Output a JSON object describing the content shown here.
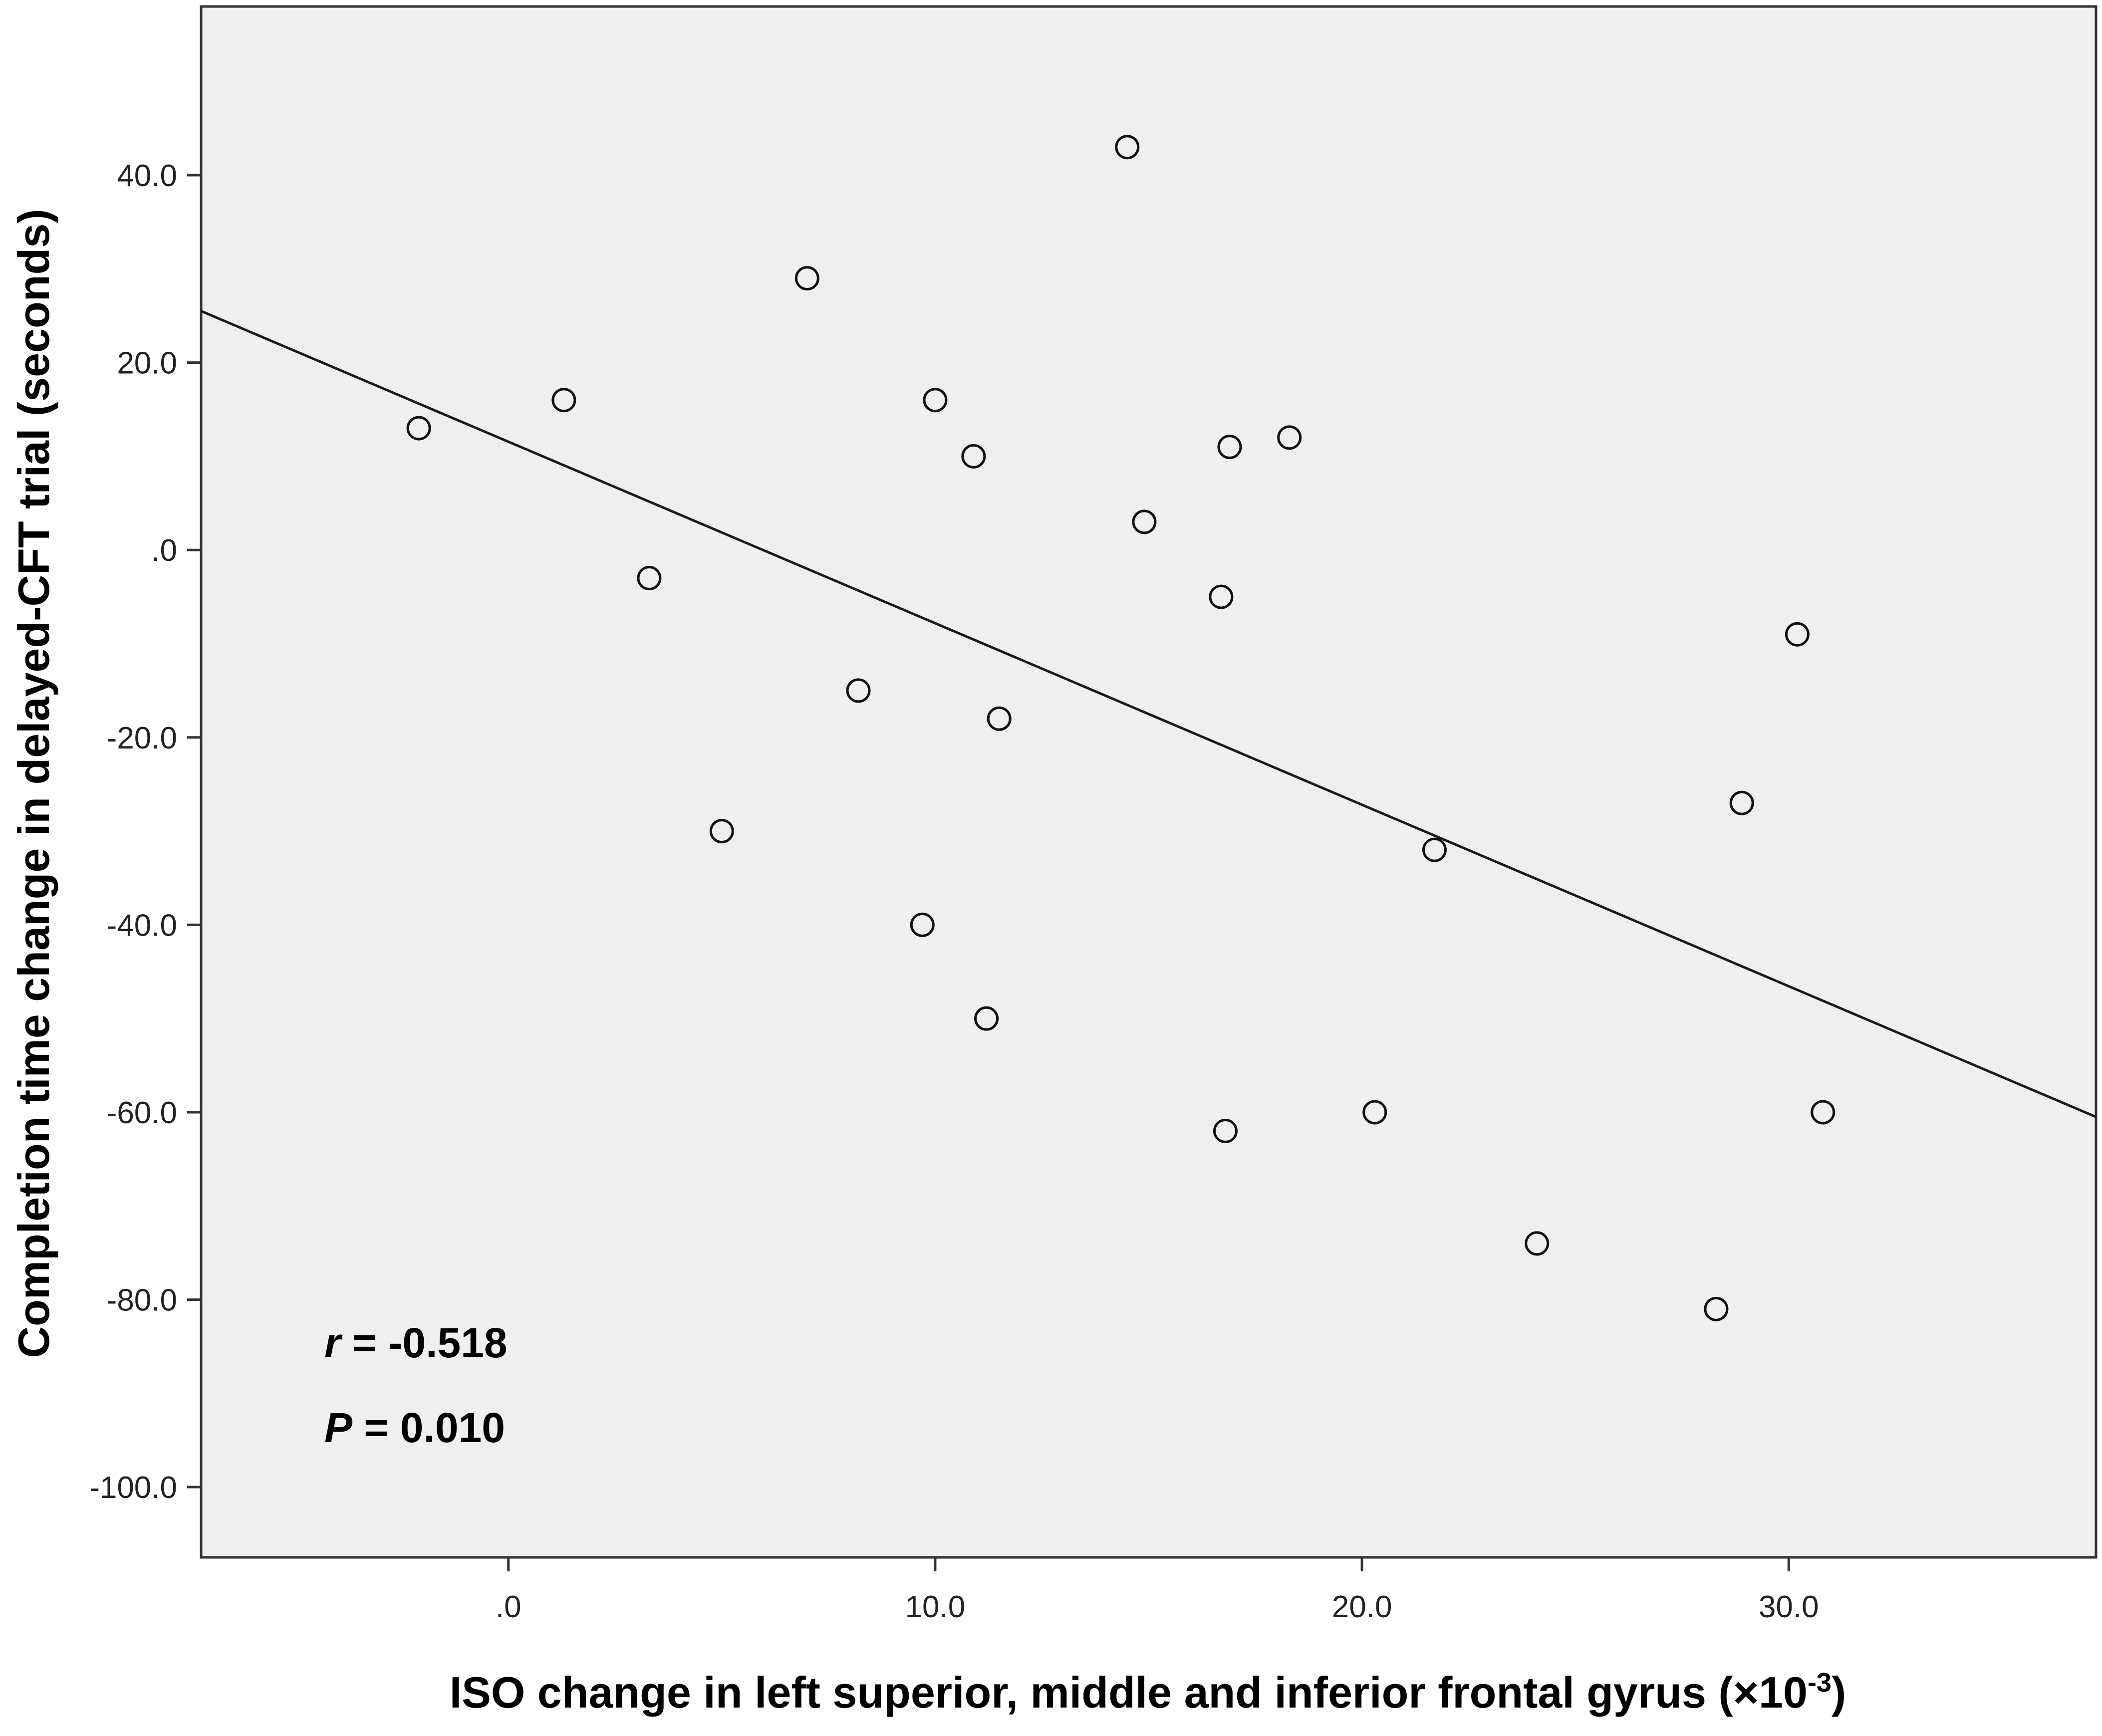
{
  "chart_data": {
    "type": "scatter",
    "xlabel": "ISO change in left superior, middle and inferior frontal gyrus (×10",
    "xlabel_sup": "-3",
    "xlabel_end": ")",
    "ylabel": "Completion time change in delayed-CFT trial (seconds)",
    "xlim": [
      -7.2,
      37.2
    ],
    "ylim": [
      -107.5,
      58
    ],
    "x_ticks": [
      0,
      10,
      20,
      30
    ],
    "x_tick_labels": [
      ".0",
      "10.0",
      "20.0",
      "30.0"
    ],
    "y_ticks": [
      40,
      20,
      0,
      -20,
      -40,
      -60,
      -80,
      -100
    ],
    "y_tick_labels": [
      "40.0",
      "20.0",
      ".0",
      "-20.0",
      "-40.0",
      "-60.0",
      "-80.0",
      "-100.0"
    ],
    "grid": false,
    "background": "#efefef",
    "marker_color": "#111111",
    "line_color": "#1a1a1a",
    "points": [
      {
        "x": -2.1,
        "y": 13
      },
      {
        "x": 1.3,
        "y": 16
      },
      {
        "x": 3.3,
        "y": -3
      },
      {
        "x": 5.0,
        "y": -30
      },
      {
        "x": 7.0,
        "y": 29
      },
      {
        "x": 8.2,
        "y": -15
      },
      {
        "x": 9.7,
        "y": -40
      },
      {
        "x": 10.0,
        "y": 16
      },
      {
        "x": 10.9,
        "y": 10
      },
      {
        "x": 11.2,
        "y": -50
      },
      {
        "x": 11.5,
        "y": -18
      },
      {
        "x": 14.5,
        "y": 43
      },
      {
        "x": 14.9,
        "y": 3
      },
      {
        "x": 16.7,
        "y": -5
      },
      {
        "x": 16.8,
        "y": -62
      },
      {
        "x": 16.9,
        "y": 11
      },
      {
        "x": 18.3,
        "y": 12
      },
      {
        "x": 20.3,
        "y": -60
      },
      {
        "x": 21.7,
        "y": -32
      },
      {
        "x": 24.1,
        "y": -74
      },
      {
        "x": 28.3,
        "y": -81
      },
      {
        "x": 28.9,
        "y": -27
      },
      {
        "x": 30.2,
        "y": -9
      },
      {
        "x": 30.8,
        "y": -60
      }
    ],
    "fit_line": {
      "x": [
        -7.2,
        37.2
      ],
      "y": [
        25.5,
        -60.5
      ]
    },
    "annotations": {
      "r_symbol": "r",
      "r_value": " = -0.518",
      "p_symbol": "P",
      "p_value": " = 0.010"
    }
  }
}
